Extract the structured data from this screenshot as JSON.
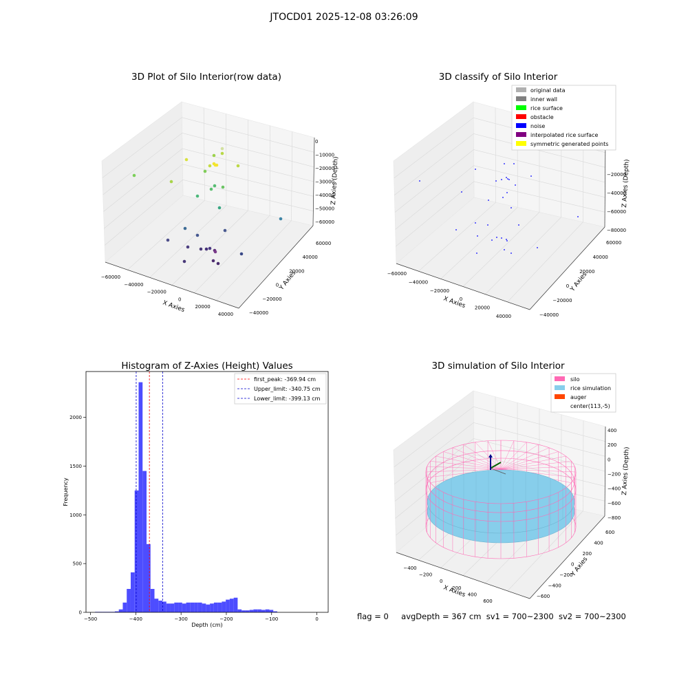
{
  "figure": {
    "suptitle": "JTOCD01 2025-12-08 03:26:09",
    "status": {
      "flag": "flag = 0",
      "avg_depth": "avgDepth = 367 cm",
      "sv1": "sv1 = 700~2300",
      "sv2": "sv2 = 700~2300"
    }
  },
  "colors": {
    "histogram_bar": "#4d4dff",
    "first_peak_line": "#ff0000",
    "limit_line": "#0000cc",
    "original_data": "#b0b0b0",
    "inner_wall": "#808080",
    "rice_surface": "#00ff00",
    "obstacle": "#ff0000",
    "noise": "#0000ff",
    "interpolated_rice_surface": "#800080",
    "symmetric_generated_points": "#ffff00",
    "silo": "#ff69b4",
    "rice_simulation": "#87ceeb",
    "auger": "#ff4500"
  },
  "chart_data": [
    {
      "type": "scatter",
      "title": "3D Plot of Silo Interior(row data)",
      "xlabel": "X Axies",
      "ylabel": "Y Axies",
      "zlabel": "Z Axies (Depth)",
      "x_ticks": [
        "−60000",
        "−40000",
        "−20000",
        "0",
        "20000",
        "40000"
      ],
      "y_ticks": [
        "−40000",
        "−20000",
        "0",
        "20000",
        "40000",
        "60000"
      ],
      "z_ticks": [
        "0",
        "−10000",
        "−20000",
        "−30000",
        "−40000",
        "−50000",
        "−60000"
      ],
      "point_count": 30,
      "colormap": "viridis"
    },
    {
      "type": "scatter",
      "title": "3D classify of Silo Interior",
      "xlabel": "X Axies",
      "ylabel": "Y Axies",
      "zlabel": "Z Axies (Depth)",
      "x_ticks": [
        "−60000",
        "−40000",
        "−20000",
        "0",
        "20000",
        "40000"
      ],
      "y_ticks": [
        "−40000",
        "−20000",
        "0",
        "20000",
        "40000",
        "60000"
      ],
      "z_ticks": [
        "−20000",
        "−40000",
        "−60000",
        "−80000"
      ],
      "legend": [
        {
          "label": "original data",
          "color": "#b0b0b0"
        },
        {
          "label": "inner wall",
          "color": "#808080"
        },
        {
          "label": "rice surface",
          "color": "#00ff00"
        },
        {
          "label": "obstacle",
          "color": "#ff0000"
        },
        {
          "label": "noise",
          "color": "#0000ff"
        },
        {
          "label": "interpolated rice surface",
          "color": "#800080"
        },
        {
          "label": "symmetric generated points",
          "color": "#ffff00"
        }
      ],
      "legend_position": "top-right",
      "point_count": 30
    },
    {
      "type": "bar",
      "title": "Histogram of Z-Axies (Height) Values",
      "xlabel": "Depth (cm)",
      "ylabel": "Frequency",
      "xlim": [
        -510,
        25
      ],
      "ylim": [
        0,
        2470
      ],
      "x_ticks": [
        -500,
        -400,
        -300,
        -200,
        -100,
        0
      ],
      "x_tick_labels": [
        "−500",
        "−400",
        "−300",
        "−200",
        "−100",
        "0"
      ],
      "y_ticks": [
        0,
        500,
        1000,
        1500,
        2000
      ],
      "bin_start": -490,
      "bin_width": 8.75,
      "values": [
        5,
        5,
        5,
        5,
        5,
        10,
        30,
        100,
        240,
        410,
        1250,
        2360,
        1450,
        700,
        240,
        140,
        120,
        110,
        90,
        90,
        100,
        100,
        90,
        100,
        100,
        100,
        100,
        90,
        80,
        90,
        100,
        100,
        110,
        130,
        140,
        150,
        30,
        20,
        20,
        25,
        30,
        30,
        25,
        30,
        25,
        10
      ],
      "vlines": [
        {
          "label": "first_peak: -369.94 cm",
          "x": -369.94,
          "style": "first_peak"
        },
        {
          "label": "Upper_limit: -340.75 cm",
          "x": -340.75,
          "style": "limit"
        },
        {
          "label": "Lower_limit: -399.13 cm",
          "x": -399.13,
          "style": "limit"
        }
      ],
      "legend_position": "top-right"
    },
    {
      "type": "scatter",
      "title": "3D simulation of Silo Interior",
      "xlabel": "X Axies",
      "ylabel": "Y Axies",
      "zlabel": "Z Axies (Depth)",
      "x_ticks": [
        "−400",
        "−200",
        "0",
        "200",
        "400",
        "600"
      ],
      "y_ticks": [
        "−600",
        "−400",
        "−200",
        "0",
        "200",
        "400",
        "600"
      ],
      "z_ticks": [
        "400",
        "200",
        "0",
        "−200",
        "−400",
        "−600",
        "−800"
      ],
      "legend": [
        {
          "label": "silo",
          "color": "#ff69b4"
        },
        {
          "label": "rice simulation",
          "color": "#87ceeb"
        },
        {
          "label": "auger",
          "color": "#ff4500"
        },
        {
          "label": "center(113,-5)",
          "color": ""
        }
      ],
      "legend_position": "top-right"
    }
  ]
}
